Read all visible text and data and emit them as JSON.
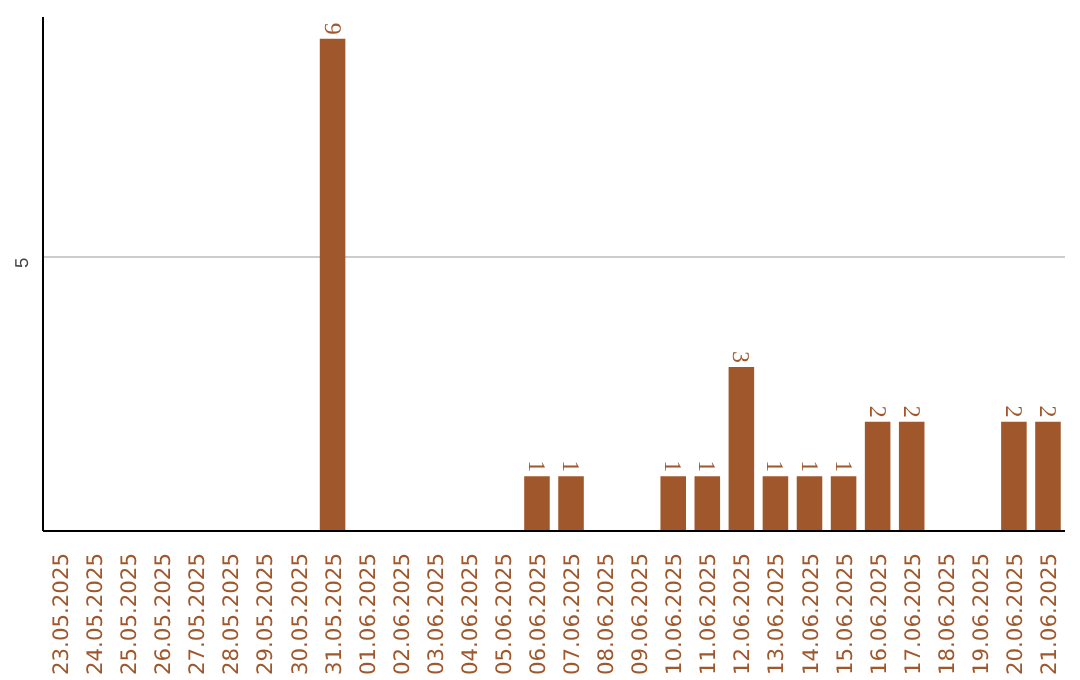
{
  "chart_data": {
    "type": "bar",
    "categories": [
      "23.05.2025",
      "24.05.2025",
      "25.05.2025",
      "26.05.2025",
      "27.05.2025",
      "28.05.2025",
      "29.05.2025",
      "30.05.2025",
      "31.05.2025",
      "01.06.2025",
      "02.06.2025",
      "03.06.2025",
      "04.06.2025",
      "05.06.2025",
      "06.06.2025",
      "07.06.2025",
      "08.06.2025",
      "09.06.2025",
      "10.06.2025",
      "11.06.2025",
      "12.06.2025",
      "13.06.2025",
      "14.06.2025",
      "15.06.2025",
      "16.06.2025",
      "17.06.2025",
      "18.06.2025",
      "19.06.2025",
      "20.06.2025",
      "21.06.2025"
    ],
    "values": [
      0,
      0,
      0,
      0,
      0,
      0,
      0,
      0,
      9,
      0,
      0,
      0,
      0,
      0,
      1,
      1,
      0,
      0,
      1,
      1,
      3,
      1,
      1,
      1,
      2,
      2,
      0,
      0,
      2,
      2
    ],
    "value_labels": [
      null,
      null,
      null,
      null,
      null,
      null,
      null,
      null,
      "9",
      null,
      null,
      null,
      null,
      null,
      "1",
      "1",
      null,
      null,
      "1",
      "1",
      "3",
      "1",
      "1",
      "1",
      "2",
      "2",
      null,
      null,
      "2",
      "2"
    ],
    "color": "#a0572b",
    "ylim": [
      0,
      9.4
    ],
    "yticks": [
      5
    ],
    "grid": "y"
  }
}
